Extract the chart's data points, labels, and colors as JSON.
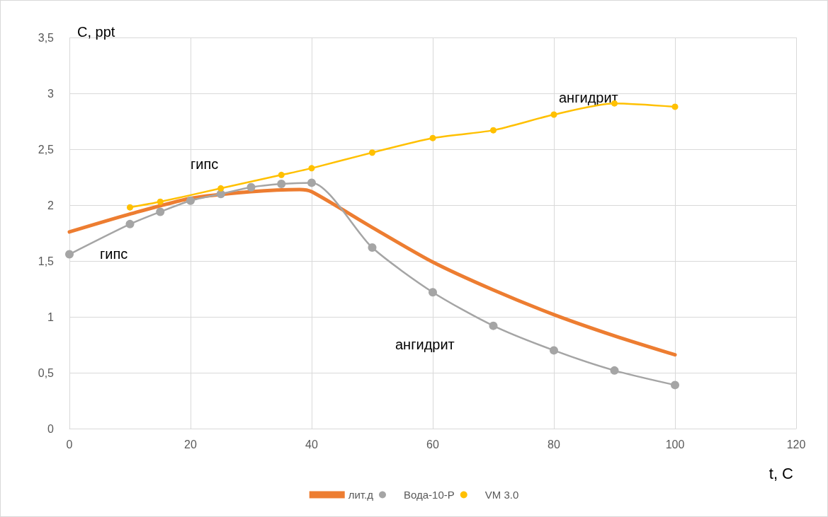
{
  "chart_data": {
    "type": "line",
    "xlabel": "t, C",
    "ylabel": "C, ppt",
    "xlim": [
      0,
      120
    ],
    "xticks": [
      0,
      20,
      40,
      60,
      80,
      100,
      120
    ],
    "ylim": [
      0,
      3.5
    ],
    "yticks": [
      0,
      {
        "value": 0.5,
        "label": "0,5"
      },
      1,
      {
        "value": 1.5,
        "label": "1,5"
      },
      2,
      {
        "value": 2.5,
        "label": "2,5"
      },
      3,
      {
        "value": 3.5,
        "label": "3,5"
      }
    ],
    "grid": true,
    "legend": "bottom",
    "series": [
      {
        "name": "лит.д",
        "color": "#ed7d31",
        "marker": "none",
        "x": [
          0,
          10,
          20,
          30,
          38,
          40,
          50,
          60,
          70,
          80,
          90,
          100
        ],
        "values": [
          1.76,
          1.92,
          2.06,
          2.12,
          2.14,
          2.12,
          1.8,
          1.49,
          1.24,
          1.02,
          0.83,
          0.66
        ]
      },
      {
        "name": "Вода-10-Р",
        "color": "#a5a5a5",
        "marker": "circle",
        "x": [
          0,
          10,
          15,
          20,
          25,
          30,
          35,
          40,
          50,
          60,
          70,
          80,
          90,
          100
        ],
        "values": [
          1.56,
          1.83,
          1.94,
          2.04,
          2.1,
          2.16,
          2.19,
          2.2,
          1.62,
          1.22,
          0.92,
          0.7,
          0.52,
          0.39
        ]
      },
      {
        "name": "VM 3.0",
        "color": "#ffc000",
        "marker": "circle",
        "x": [
          10,
          15,
          25,
          35,
          40,
          50,
          60,
          70,
          80,
          90,
          100
        ],
        "values": [
          1.98,
          2.03,
          2.15,
          2.27,
          2.33,
          2.47,
          2.6,
          2.67,
          2.81,
          2.91,
          2.88
        ]
      }
    ],
    "annotations": [
      "гипс",
      "гипс",
      "ангидрит",
      "ангидрит"
    ]
  }
}
